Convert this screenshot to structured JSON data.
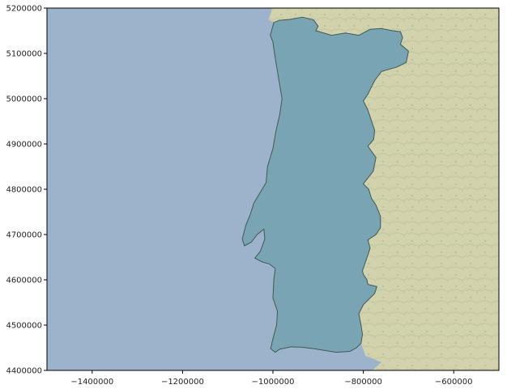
{
  "chart_data": {
    "type": "map",
    "description_free": true,
    "title": "",
    "xlabel": "",
    "ylabel": "",
    "xlim": [
      -1500000,
      -500000
    ],
    "ylim": [
      4400000,
      5200000
    ],
    "x_ticks": [
      {
        "value": -1400000,
        "label": "−1400000"
      },
      {
        "value": -1200000,
        "label": "−1200000"
      },
      {
        "value": -1000000,
        "label": "−1000000"
      },
      {
        "value": -800000,
        "label": "−800000"
      },
      {
        "value": -600000,
        "label": "−600000"
      }
    ],
    "y_ticks": [
      {
        "value": 4400000,
        "label": "4400000"
      },
      {
        "value": 4500000,
        "label": "4500000"
      },
      {
        "value": 4600000,
        "label": "4600000"
      },
      {
        "value": 4700000,
        "label": "4700000"
      },
      {
        "value": 4800000,
        "label": "4800000"
      },
      {
        "value": 4900000,
        "label": "4900000"
      },
      {
        "value": 5000000,
        "label": "5000000"
      },
      {
        "value": 5100000,
        "label": "5100000"
      },
      {
        "value": 5200000,
        "label": "5200000"
      }
    ],
    "grid": false,
    "colors": {
      "ocean": "#9db3cb",
      "land": "#d9d6b4",
      "overlay_fill": "#6a9ea8",
      "overlay_stroke": "#3f5a55"
    },
    "regions": [
      {
        "id": "portugal-mainland",
        "fill_opacity": 0.7,
        "coords": [
          [
            -1006000,
            5140000
          ],
          [
            -998000,
            5168000
          ],
          [
            -986000,
            5173000
          ],
          [
            -962000,
            5175000
          ],
          [
            -935000,
            5180000
          ],
          [
            -910000,
            5174000
          ],
          [
            -900000,
            5160000
          ],
          [
            -905000,
            5150000
          ],
          [
            -870000,
            5140000
          ],
          [
            -840000,
            5145000
          ],
          [
            -810000,
            5140000
          ],
          [
            -785000,
            5153000
          ],
          [
            -760000,
            5155000
          ],
          [
            -735000,
            5150000
          ],
          [
            -718000,
            5148000
          ],
          [
            -713000,
            5135000
          ],
          [
            -718000,
            5120000
          ],
          [
            -700000,
            5105000
          ],
          [
            -705000,
            5080000
          ],
          [
            -725000,
            5070000
          ],
          [
            -760000,
            5060000
          ],
          [
            -775000,
            5040000
          ],
          [
            -790000,
            5010000
          ],
          [
            -800000,
            4995000
          ],
          [
            -790000,
            4975000
          ],
          [
            -785000,
            4960000
          ],
          [
            -775000,
            4930000
          ],
          [
            -777000,
            4910000
          ],
          [
            -790000,
            4895000
          ],
          [
            -772000,
            4870000
          ],
          [
            -778000,
            4840000
          ],
          [
            -800000,
            4812000
          ],
          [
            -788000,
            4800000
          ],
          [
            -782000,
            4780000
          ],
          [
            -772000,
            4765000
          ],
          [
            -762000,
            4740000
          ],
          [
            -762000,
            4715000
          ],
          [
            -772000,
            4700000
          ],
          [
            -790000,
            4688000
          ],
          [
            -785000,
            4670000
          ],
          [
            -795000,
            4640000
          ],
          [
            -802000,
            4620000
          ],
          [
            -800000,
            4612000
          ],
          [
            -792000,
            4600000
          ],
          [
            -790000,
            4590000
          ],
          [
            -770000,
            4585000
          ],
          [
            -775000,
            4570000
          ],
          [
            -800000,
            4545000
          ],
          [
            -810000,
            4525000
          ],
          [
            -805000,
            4500000
          ],
          [
            -802000,
            4480000
          ],
          [
            -805000,
            4460000
          ],
          [
            -815000,
            4450000
          ],
          [
            -830000,
            4442000
          ],
          [
            -860000,
            4440000
          ],
          [
            -885000,
            4444000
          ],
          [
            -910000,
            4448000
          ],
          [
            -935000,
            4451000
          ],
          [
            -960000,
            4452000
          ],
          [
            -985000,
            4447000
          ],
          [
            -995000,
            4440000
          ],
          [
            -1005000,
            4448000
          ],
          [
            -1000000,
            4470000
          ],
          [
            -992000,
            4500000
          ],
          [
            -990000,
            4530000
          ],
          [
            -1000000,
            4560000
          ],
          [
            -998000,
            4600000
          ],
          [
            -995000,
            4625000
          ],
          [
            -1008000,
            4635000
          ],
          [
            -1025000,
            4640000
          ],
          [
            -1040000,
            4648000
          ],
          [
            -1028000,
            4663000
          ],
          [
            -1018000,
            4690000
          ],
          [
            -1020000,
            4712000
          ],
          [
            -1035000,
            4700000
          ],
          [
            -1048000,
            4683000
          ],
          [
            -1063000,
            4675000
          ],
          [
            -1068000,
            4690000
          ],
          [
            -1060000,
            4720000
          ],
          [
            -1050000,
            4745000
          ],
          [
            -1042000,
            4770000
          ],
          [
            -1030000,
            4790000
          ],
          [
            -1015000,
            4815000
          ],
          [
            -1012000,
            4850000
          ],
          [
            -1000000,
            4890000
          ],
          [
            -993000,
            4930000
          ],
          [
            -985000,
            4965000
          ],
          [
            -980000,
            5000000
          ],
          [
            -985000,
            5030000
          ],
          [
            -990000,
            5060000
          ],
          [
            -995000,
            5090000
          ],
          [
            -998000,
            5110000
          ],
          [
            -1000000,
            5125000
          ],
          [
            -1006000,
            5140000
          ]
        ]
      }
    ],
    "coast": {
      "spain_land_west_edge": [
        [
          -1006000,
          5190000
        ],
        [
          -985000,
          5200000
        ]
      ]
    }
  }
}
